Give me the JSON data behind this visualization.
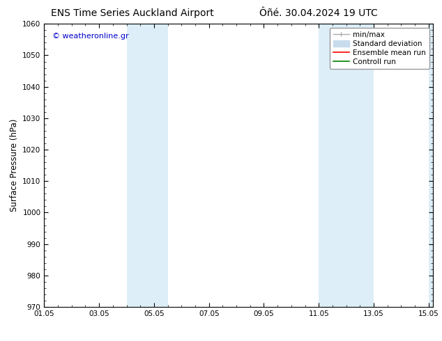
{
  "title_left": "ENS Time Series Auckland Airport",
  "title_right": "Ôñé. 30.04.2024 19 UTC",
  "ylabel": "Surface Pressure (hPa)",
  "xlim": [
    1.0,
    15.167
  ],
  "ylim": [
    970,
    1060
  ],
  "yticks": [
    970,
    980,
    990,
    1000,
    1010,
    1020,
    1030,
    1040,
    1050,
    1060
  ],
  "xtick_labels": [
    "01.05",
    "03.05",
    "05.05",
    "07.05",
    "09.05",
    "11.05",
    "13.05",
    "15.05"
  ],
  "xtick_positions": [
    1.0,
    3.0,
    5.0,
    7.0,
    9.0,
    11.0,
    13.0,
    15.0
  ],
  "shaded_bands": [
    {
      "xmin": 4.0,
      "xmax": 5.5
    },
    {
      "xmin": 11.0,
      "xmax": 13.0
    },
    {
      "xmin": 15.0,
      "xmax": 15.167
    }
  ],
  "shaded_color": "#ddeef8",
  "watermark_text": "© weatheronline.gr",
  "watermark_color": "#0000cc",
  "legend_entries": [
    {
      "label": "min/max",
      "color": "#aaaaaa",
      "lw": 1.0
    },
    {
      "label": "Standard deviation",
      "color": "#c8dced",
      "lw": 8
    },
    {
      "label": "Ensemble mean run",
      "color": "red",
      "lw": 1.2
    },
    {
      "label": "Controll run",
      "color": "green",
      "lw": 1.2
    }
  ],
  "bg_color": "#ffffff",
  "font_size_title": 10,
  "font_size_tick": 7.5,
  "font_size_legend": 7.5,
  "font_size_ylabel": 8.5,
  "font_size_watermark": 8
}
